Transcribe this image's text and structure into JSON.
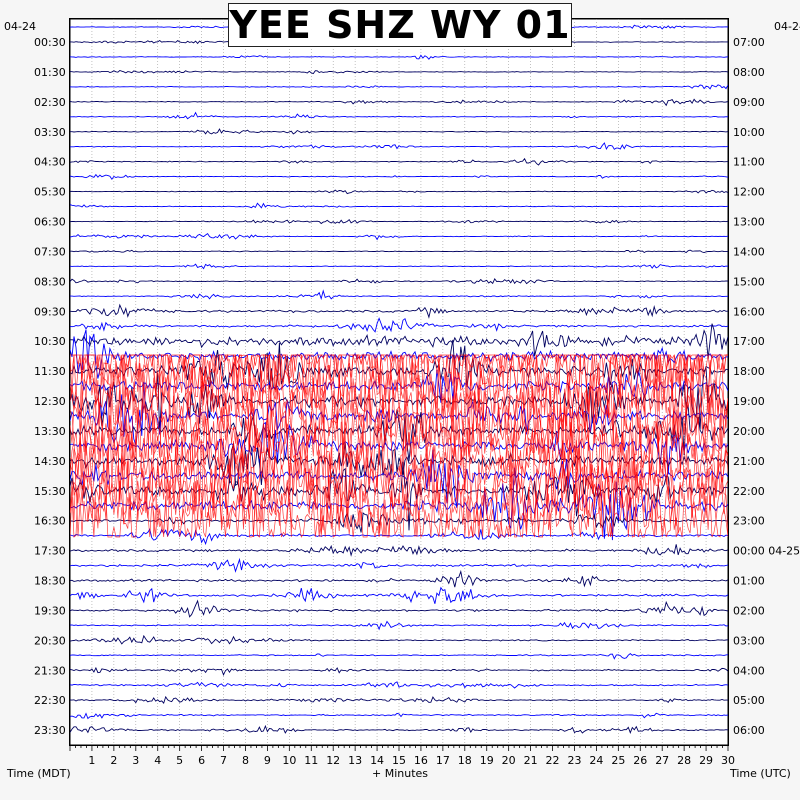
{
  "chart_data": {
    "type": "helicorder",
    "title": "YEE SHZ WY 01",
    "left_date": "04-24",
    "right_date": "04-24",
    "right_date_2": "04-25",
    "xlabel": "+ Minutes",
    "left_axis_label": "Time (MDT)",
    "right_axis_label": "Time (UTC)",
    "x_ticks": [
      "1",
      "2",
      "3",
      "4",
      "5",
      "6",
      "7",
      "8",
      "9",
      "10",
      "11",
      "12",
      "13",
      "14",
      "15",
      "16",
      "17",
      "18",
      "19",
      "20",
      "21",
      "22",
      "23",
      "24",
      "25",
      "26",
      "27",
      "28",
      "29",
      "30"
    ],
    "xlim": [
      0,
      30
    ],
    "left_hour_labels": [
      "00:30",
      "01:30",
      "02:30",
      "03:30",
      "04:30",
      "05:30",
      "06:30",
      "07:30",
      "08:30",
      "09:30",
      "10:30",
      "11:30",
      "12:30",
      "13:30",
      "14:30",
      "15:30",
      "16:30",
      "17:30",
      "18:30",
      "19:30",
      "20:30",
      "21:30",
      "22:30",
      "23:30"
    ],
    "right_hour_labels": [
      "07:00",
      "08:00",
      "09:00",
      "10:00",
      "11:00",
      "12:00",
      "13:00",
      "14:00",
      "15:00",
      "16:00",
      "17:00",
      "18:00",
      "19:00",
      "20:00",
      "21:00",
      "22:00",
      "23:00",
      "00:00 04-25",
      "01:00",
      "02:00",
      "03:00",
      "04:00",
      "05:00",
      "06:00"
    ],
    "rows_per_hour": 2,
    "row_minutes": 30,
    "trace_colors": [
      "#0000ff",
      "#000060",
      "#ff0000",
      "#0000ff"
    ],
    "activity_profile": [
      {
        "from_hour": 0,
        "to_hour": 9.5,
        "level": "low"
      },
      {
        "from_hour": 9.5,
        "to_hour": 10.5,
        "level": "moderate"
      },
      {
        "from_hour": 10.5,
        "to_hour": 16.5,
        "level": "high",
        "clipped": true
      },
      {
        "from_hour": 16.5,
        "to_hour": 20,
        "level": "moderate"
      },
      {
        "from_hour": 20,
        "to_hour": 24,
        "level": "low-moderate"
      }
    ],
    "grid": "dotted-minute"
  }
}
